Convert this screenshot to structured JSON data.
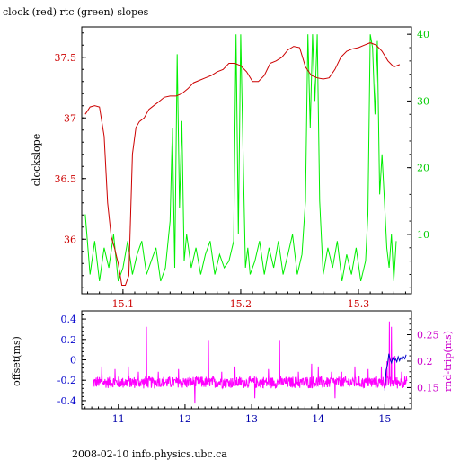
{
  "page": {
    "title": "clock (red) rtc (green) slopes",
    "footer": "2008-02-10 info.physics.ubc.ca"
  },
  "colors": {
    "clock": "#cc0000",
    "rtc": "#00ee00",
    "offset": "#0000cc",
    "roundtrip": "#ff00ff",
    "axis": "#000000",
    "left_tick_top": "#cc0000",
    "right_tick_top": "#00cc00",
    "left_tick_bottom": "#0000cc",
    "right_tick_bottom": "#cc00cc",
    "xtick_top": "#cc0000",
    "xtick_bottom": "#0000aa"
  },
  "chart_data": [
    {
      "type": "line",
      "title": "clock (red) rtc (green) slopes",
      "ylabel": "clockslope",
      "xlim": [
        15.065,
        15.345
      ],
      "ylim": [
        35.55,
        37.75
      ],
      "y2lim": [
        1.1,
        41.1
      ],
      "xticks": [
        "15.1",
        "15.2",
        "15.3"
      ],
      "xtick_values": [
        15.1,
        15.2,
        15.3
      ],
      "yticks": [
        "36",
        "36.5",
        "37",
        "37.5"
      ],
      "ytick_values": [
        36,
        36.5,
        37,
        37.5
      ],
      "y2ticks": [
        "10",
        "20",
        "30",
        "40"
      ],
      "y2tick_values": [
        10,
        20,
        30,
        40
      ],
      "series": [
        {
          "axis": "left",
          "color": "red",
          "x": [
            15.068,
            15.072,
            15.076,
            15.08,
            15.084,
            15.087,
            15.09,
            15.093,
            15.096,
            15.099,
            15.102,
            15.105,
            15.108,
            15.111,
            15.114,
            15.118,
            15.122,
            15.126,
            15.13,
            15.135,
            15.14,
            15.145,
            15.15,
            15.155,
            15.16,
            15.165,
            15.17,
            15.175,
            15.18,
            15.185,
            15.19,
            15.195,
            15.2,
            15.205,
            15.21,
            15.215,
            15.22,
            15.225,
            15.23,
            15.235,
            15.24,
            15.245,
            15.25,
            15.255,
            15.26,
            15.265,
            15.27,
            15.275,
            15.28,
            15.285,
            15.29,
            15.295,
            15.3,
            15.305,
            15.31,
            15.315,
            15.32,
            15.325,
            15.33,
            15.335
          ],
          "y": [
            37.03,
            37.09,
            37.1,
            37.09,
            36.85,
            36.3,
            36.02,
            35.92,
            35.8,
            35.62,
            35.62,
            35.7,
            36.7,
            36.92,
            36.97,
            37.0,
            37.07,
            37.1,
            37.13,
            37.17,
            37.18,
            37.18,
            37.2,
            37.24,
            37.29,
            37.31,
            37.33,
            37.35,
            37.38,
            37.4,
            37.45,
            37.45,
            37.43,
            37.38,
            37.3,
            37.3,
            37.35,
            37.45,
            37.47,
            37.5,
            37.56,
            37.59,
            37.58,
            37.42,
            37.35,
            37.33,
            37.32,
            37.33,
            37.4,
            37.5,
            37.55,
            37.57,
            37.58,
            37.6,
            37.62,
            37.6,
            37.55,
            37.47,
            37.42,
            37.44
          ]
        },
        {
          "axis": "right",
          "color": "green",
          "x": [
            15.068,
            15.072,
            15.076,
            15.08,
            15.084,
            15.088,
            15.092,
            15.096,
            15.1,
            15.104,
            15.108,
            15.112,
            15.116,
            15.12,
            15.124,
            15.128,
            15.132,
            15.136,
            15.14,
            15.142,
            15.144,
            15.146,
            15.148,
            15.15,
            15.152,
            15.154,
            15.158,
            15.162,
            15.166,
            15.17,
            15.174,
            15.178,
            15.182,
            15.186,
            15.19,
            15.194,
            15.196,
            15.198,
            15.2,
            15.202,
            15.204,
            15.206,
            15.208,
            15.212,
            15.216,
            15.22,
            15.224,
            15.228,
            15.232,
            15.236,
            15.24,
            15.244,
            15.248,
            15.252,
            15.255,
            15.257,
            15.259,
            15.261,
            15.263,
            15.265,
            15.267,
            15.27,
            15.274,
            15.278,
            15.282,
            15.286,
            15.29,
            15.294,
            15.298,
            15.302,
            15.306,
            15.308,
            15.31,
            15.312,
            15.314,
            15.316,
            15.318,
            15.32,
            15.322,
            15.324,
            15.326,
            15.328,
            15.33,
            15.332
          ],
          "y": [
            13,
            4,
            9,
            3,
            8,
            5,
            10,
            3,
            5,
            9,
            4,
            7,
            9,
            4,
            6,
            8,
            3,
            5,
            12,
            26,
            5,
            37,
            14,
            27,
            6,
            10,
            5,
            8,
            4,
            7,
            9,
            4,
            7,
            5,
            6,
            9,
            40,
            10,
            40,
            22,
            5,
            8,
            4,
            6,
            9,
            4,
            8,
            5,
            9,
            4,
            7,
            10,
            4,
            7,
            15,
            40,
            26,
            40,
            30,
            40,
            15,
            4,
            8,
            5,
            9,
            3,
            7,
            4,
            8,
            3,
            6,
            13,
            40,
            38,
            28,
            39,
            16,
            22,
            15,
            8,
            5,
            10,
            3,
            9
          ]
        }
      ]
    },
    {
      "type": "line",
      "xlim": [
        10.45,
        15.4
      ],
      "ylim": [
        -0.48,
        0.48
      ],
      "y2lim": [
        0.11,
        0.295
      ],
      "ylabel": "offset(ms)",
      "y2label": "rnd-trip(ms)",
      "xticks": [
        "11",
        "12",
        "13",
        "14",
        "15"
      ],
      "xtick_values": [
        11,
        12,
        13,
        14,
        15
      ],
      "yticks": [
        "-0.4",
        "-0.2",
        "0",
        "0.2",
        "0.4"
      ],
      "ytick_values": [
        -0.4,
        -0.2,
        0,
        0.2,
        0.4
      ],
      "y2ticks": [
        "0.15",
        "0.2",
        "0.25"
      ],
      "y2tick_values": [
        0.15,
        0.2,
        0.25
      ],
      "series": [
        {
          "axis": "right",
          "color": "magenta",
          "baseline": 0.16,
          "noise": 0.008,
          "spikes": [
            {
              "x": 10.75,
              "y": 0.19
            },
            {
              "x": 10.95,
              "y": 0.185
            },
            {
              "x": 11.15,
              "y": 0.19
            },
            {
              "x": 11.3,
              "y": 0.18
            },
            {
              "x": 11.42,
              "y": 0.265
            },
            {
              "x": 11.6,
              "y": 0.18
            },
            {
              "x": 11.9,
              "y": 0.185
            },
            {
              "x": 12.15,
              "y": 0.18
            },
            {
              "x": 12.35,
              "y": 0.24
            },
            {
              "x": 12.55,
              "y": 0.18
            },
            {
              "x": 12.75,
              "y": 0.19
            },
            {
              "x": 13.05,
              "y": 0.18
            },
            {
              "x": 13.25,
              "y": 0.185
            },
            {
              "x": 13.42,
              "y": 0.24
            },
            {
              "x": 13.7,
              "y": 0.18
            },
            {
              "x": 13.9,
              "y": 0.195
            },
            {
              "x": 14.0,
              "y": 0.19
            },
            {
              "x": 14.2,
              "y": 0.18
            },
            {
              "x": 14.35,
              "y": 0.18
            },
            {
              "x": 14.55,
              "y": 0.19
            },
            {
              "x": 14.75,
              "y": 0.185
            },
            {
              "x": 14.95,
              "y": 0.19
            },
            {
              "x": 15.03,
              "y": 0.2
            },
            {
              "x": 15.07,
              "y": 0.275
            },
            {
              "x": 15.1,
              "y": 0.265
            },
            {
              "x": 15.15,
              "y": 0.21
            },
            {
              "x": 15.25,
              "y": 0.18
            }
          ],
          "dips": [
            {
              "x": 12.15,
              "y": 0.12
            },
            {
              "x": 13.05,
              "y": 0.13
            },
            {
              "x": 14.25,
              "y": 0.13
            }
          ]
        },
        {
          "axis": "left",
          "color": "blue",
          "x": [
            15.0,
            15.02,
            15.04,
            15.06,
            15.08,
            15.1,
            15.12,
            15.14,
            15.16,
            15.18,
            15.2,
            15.22,
            15.24,
            15.26,
            15.28,
            15.3,
            15.32
          ],
          "y": [
            -0.3,
            -0.1,
            -0.05,
            0.06,
            0.0,
            -0.03,
            0.02,
            -0.01,
            0.01,
            -0.02,
            0.03,
            -0.01,
            0.02,
            0.0,
            0.03,
            0.01,
            0.05
          ]
        }
      ]
    }
  ]
}
